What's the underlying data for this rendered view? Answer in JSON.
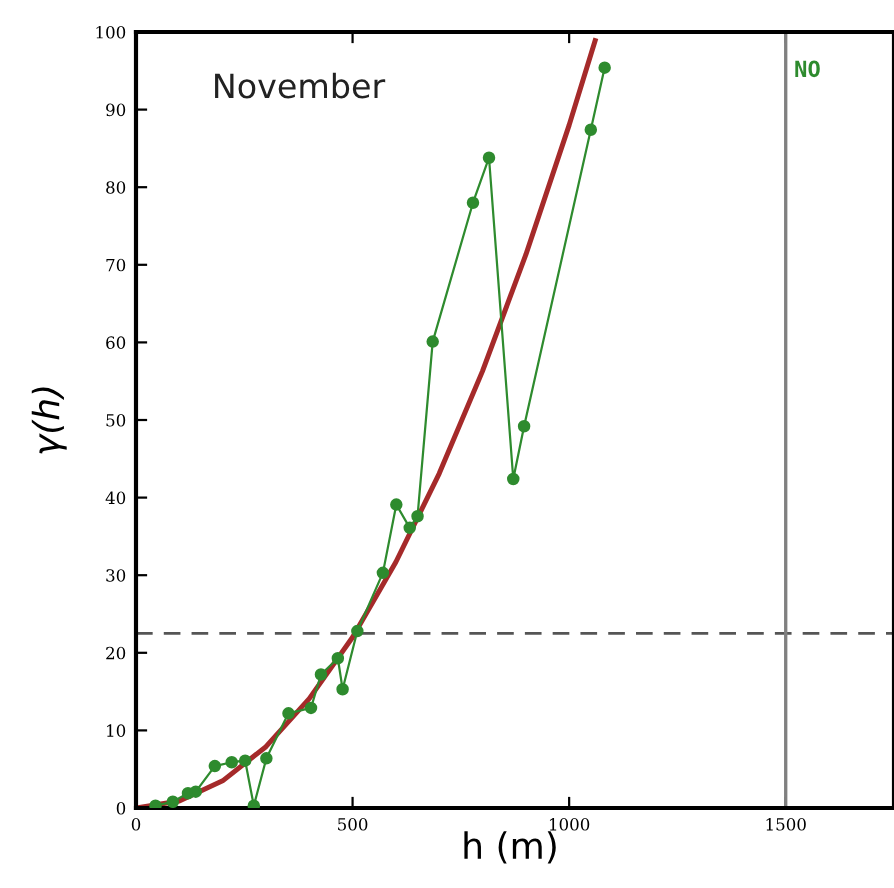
{
  "chart_data": {
    "type": "line",
    "xlabel": "h (m)",
    "ylabel": "γ(h)",
    "xlim": [
      0,
      1750
    ],
    "ylim": [
      0,
      100
    ],
    "xticks": [
      0,
      500,
      1000,
      1500
    ],
    "yticks": [
      0,
      10,
      20,
      30,
      40,
      50,
      60,
      70,
      80,
      90,
      100
    ],
    "grid": false,
    "series": [
      {
        "color": "#2e8b2e",
        "marker": "circle",
        "x": [
          45,
          85,
          120,
          138,
          182,
          221,
          252,
          272,
          301,
          352,
          404,
          427,
          466,
          477,
          511,
          570,
          601,
          632,
          650,
          685,
          778,
          815,
          871,
          896,
          1050,
          1082
        ],
        "values": [
          0.3,
          0.8,
          1.9,
          2.1,
          5.4,
          5.9,
          6.1,
          0.3,
          6.4,
          12.2,
          12.9,
          17.2,
          19.3,
          15.3,
          22.8,
          30.3,
          39.1,
          36.1,
          37.6,
          60.1,
          78.0,
          83.8,
          42.4,
          49.2,
          87.4,
          95.4
        ]
      },
      {
        "color": "#a52a2a",
        "marker": "none",
        "x": [
          0,
          100,
          200,
          300,
          400,
          500,
          600,
          700,
          800,
          900,
          1000,
          1060
        ],
        "values": [
          0,
          0.9,
          3.5,
          7.9,
          14.1,
          22,
          31.7,
          43.1,
          56.3,
          71.3,
          88,
          98.9
        ]
      }
    ],
    "ref_lines": [
      {
        "axis": "y",
        "value": 22.5,
        "color": "#555555",
        "line_style": "dashed"
      },
      {
        "axis": "x",
        "value": 1500,
        "color": "#808080",
        "line_style": "solid"
      }
    ],
    "annotations": [
      {
        "text": "November"
      },
      {
        "text": "NO",
        "x": 1500,
        "y": 95
      }
    ]
  }
}
